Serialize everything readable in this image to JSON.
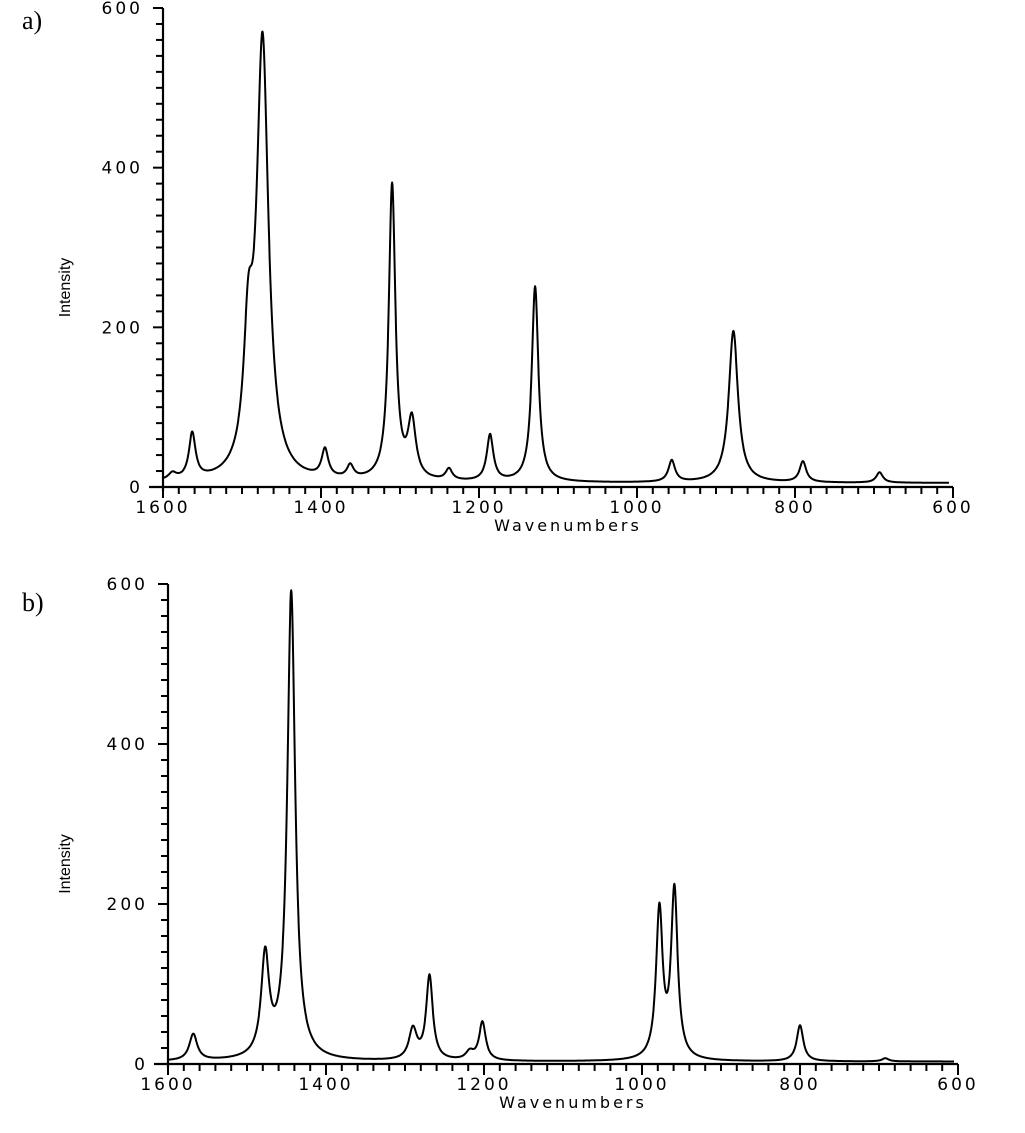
{
  "figure": {
    "panels": [
      {
        "label": "a)"
      },
      {
        "label": "b)"
      }
    ]
  },
  "chart_data": [
    {
      "type": "line",
      "title": "a)",
      "xlabel": "Wavenumbers",
      "ylabel": "Intensity",
      "xlim": [
        1600,
        600
      ],
      "ylim": [
        0,
        600
      ],
      "x_reversed": true,
      "xticks": [
        1600,
        1400,
        1200,
        1000,
        800,
        600
      ],
      "yticks": [
        0,
        200,
        400,
        600
      ],
      "grid": false,
      "legend": null,
      "baseline": 5,
      "peaks": [
        {
          "x": 1588,
          "y": 8,
          "w": 6
        },
        {
          "x": 1563,
          "y": 57,
          "w": 5
        },
        {
          "x": 1492,
          "y": 150,
          "w": 7
        },
        {
          "x": 1474,
          "y": 545,
          "w": 9
        },
        {
          "x": 1395,
          "y": 35,
          "w": 5
        },
        {
          "x": 1363,
          "y": 16,
          "w": 5
        },
        {
          "x": 1310,
          "y": 370,
          "w": 5
        },
        {
          "x": 1285,
          "y": 72,
          "w": 6
        },
        {
          "x": 1238,
          "y": 14,
          "w": 5
        },
        {
          "x": 1186,
          "y": 58,
          "w": 5
        },
        {
          "x": 1129,
          "y": 245,
          "w": 5
        },
        {
          "x": 956,
          "y": 27,
          "w": 5
        },
        {
          "x": 878,
          "y": 190,
          "w": 7
        },
        {
          "x": 790,
          "y": 26,
          "w": 5
        },
        {
          "x": 693,
          "y": 13,
          "w": 5
        }
      ],
      "peak_summary": [
        {
          "wavenumber": 1563,
          "intensity": 60
        },
        {
          "wavenumber": 1475,
          "intensity": 600
        },
        {
          "wavenumber": 1395,
          "intensity": 40
        },
        {
          "wavenumber": 1365,
          "intensity": 20
        },
        {
          "wavenumber": 1310,
          "intensity": 380
        },
        {
          "wavenumber": 1285,
          "intensity": 80
        },
        {
          "wavenumber": 1240,
          "intensity": 15
        },
        {
          "wavenumber": 1186,
          "intensity": 60
        },
        {
          "wavenumber": 1129,
          "intensity": 250
        },
        {
          "wavenumber": 956,
          "intensity": 30
        },
        {
          "wavenumber": 878,
          "intensity": 190
        },
        {
          "wavenumber": 790,
          "intensity": 30
        },
        {
          "wavenumber": 693,
          "intensity": 15
        }
      ]
    },
    {
      "type": "line",
      "title": "b)",
      "xlabel": "Wavenumbers",
      "ylabel": "Intensity",
      "xlim": [
        1600,
        600
      ],
      "ylim": [
        0,
        600
      ],
      "x_reversed": true,
      "xticks": [
        1600,
        1400,
        1200,
        1000,
        800,
        600
      ],
      "yticks": [
        0,
        200,
        400,
        600
      ],
      "grid": false,
      "legend": null,
      "baseline": 3,
      "peaks": [
        {
          "x": 1568,
          "y": 33,
          "w": 6
        },
        {
          "x": 1477,
          "y": 125,
          "w": 6
        },
        {
          "x": 1444,
          "y": 585,
          "w": 6
        },
        {
          "x": 1290,
          "y": 38,
          "w": 6
        },
        {
          "x": 1269,
          "y": 105,
          "w": 5
        },
        {
          "x": 1218,
          "y": 10,
          "w": 6
        },
        {
          "x": 1202,
          "y": 48,
          "w": 5
        },
        {
          "x": 978,
          "y": 185,
          "w": 5
        },
        {
          "x": 959,
          "y": 210,
          "w": 5
        },
        {
          "x": 800,
          "y": 45,
          "w": 5
        },
        {
          "x": 692,
          "y": 4,
          "w": 5
        }
      ],
      "peak_summary": [
        {
          "wavenumber": 1568,
          "intensity": 35
        },
        {
          "wavenumber": 1477,
          "intensity": 140
        },
        {
          "wavenumber": 1444,
          "intensity": 590
        },
        {
          "wavenumber": 1290,
          "intensity": 45
        },
        {
          "wavenumber": 1269,
          "intensity": 110
        },
        {
          "wavenumber": 1218,
          "intensity": 15
        },
        {
          "wavenumber": 1202,
          "intensity": 55
        },
        {
          "wavenumber": 978,
          "intensity": 200
        },
        {
          "wavenumber": 959,
          "intensity": 225
        },
        {
          "wavenumber": 800,
          "intensity": 50
        },
        {
          "wavenumber": 692,
          "intensity": 5
        }
      ]
    }
  ]
}
